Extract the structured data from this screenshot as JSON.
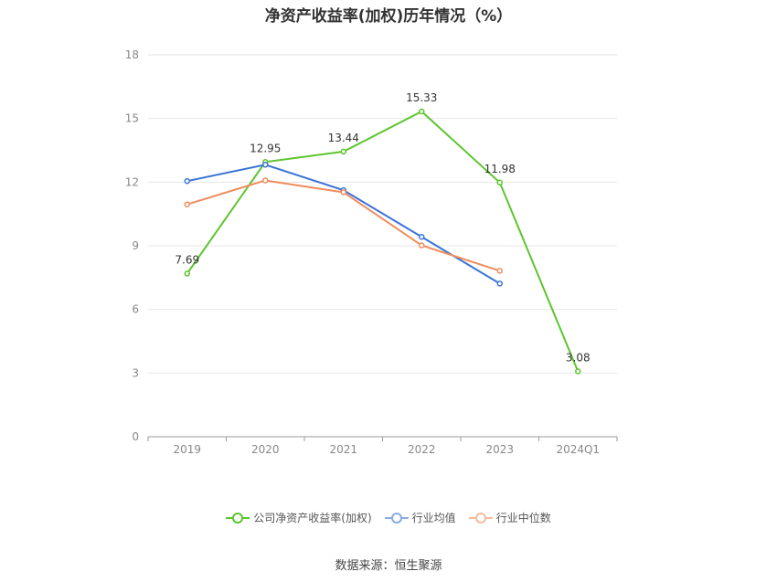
{
  "chart_data": {
    "type": "line",
    "title": "净资产收益率(加权)历年情况（%）",
    "categories": [
      "2019",
      "2020",
      "2021",
      "2022",
      "2023",
      "2024Q1"
    ],
    "ylim": [
      0,
      18
    ],
    "yticks": [
      0,
      3,
      6,
      9,
      12,
      15,
      18
    ],
    "grid": true,
    "legend_position": "bottom",
    "series": [
      {
        "name": "公司净资产收益率(加权)",
        "color": "#5cc52d",
        "values": [
          7.69,
          12.95,
          13.44,
          15.33,
          11.98,
          3.08
        ],
        "show_labels": true
      },
      {
        "name": "行业均值",
        "color": "#3a73d6",
        "values": [
          12.05,
          12.82,
          11.62,
          9.42,
          7.22,
          null
        ],
        "show_labels": false
      },
      {
        "name": "行业中位数",
        "color": "#ef8c5c",
        "values": [
          10.95,
          12.08,
          11.52,
          9.02,
          7.82,
          null
        ],
        "show_labels": false
      }
    ],
    "data_labels": [
      "7.69",
      "12.95",
      "13.44",
      "15.33",
      "11.98",
      "3.08"
    ]
  },
  "source": "数据来源：恒生聚源"
}
